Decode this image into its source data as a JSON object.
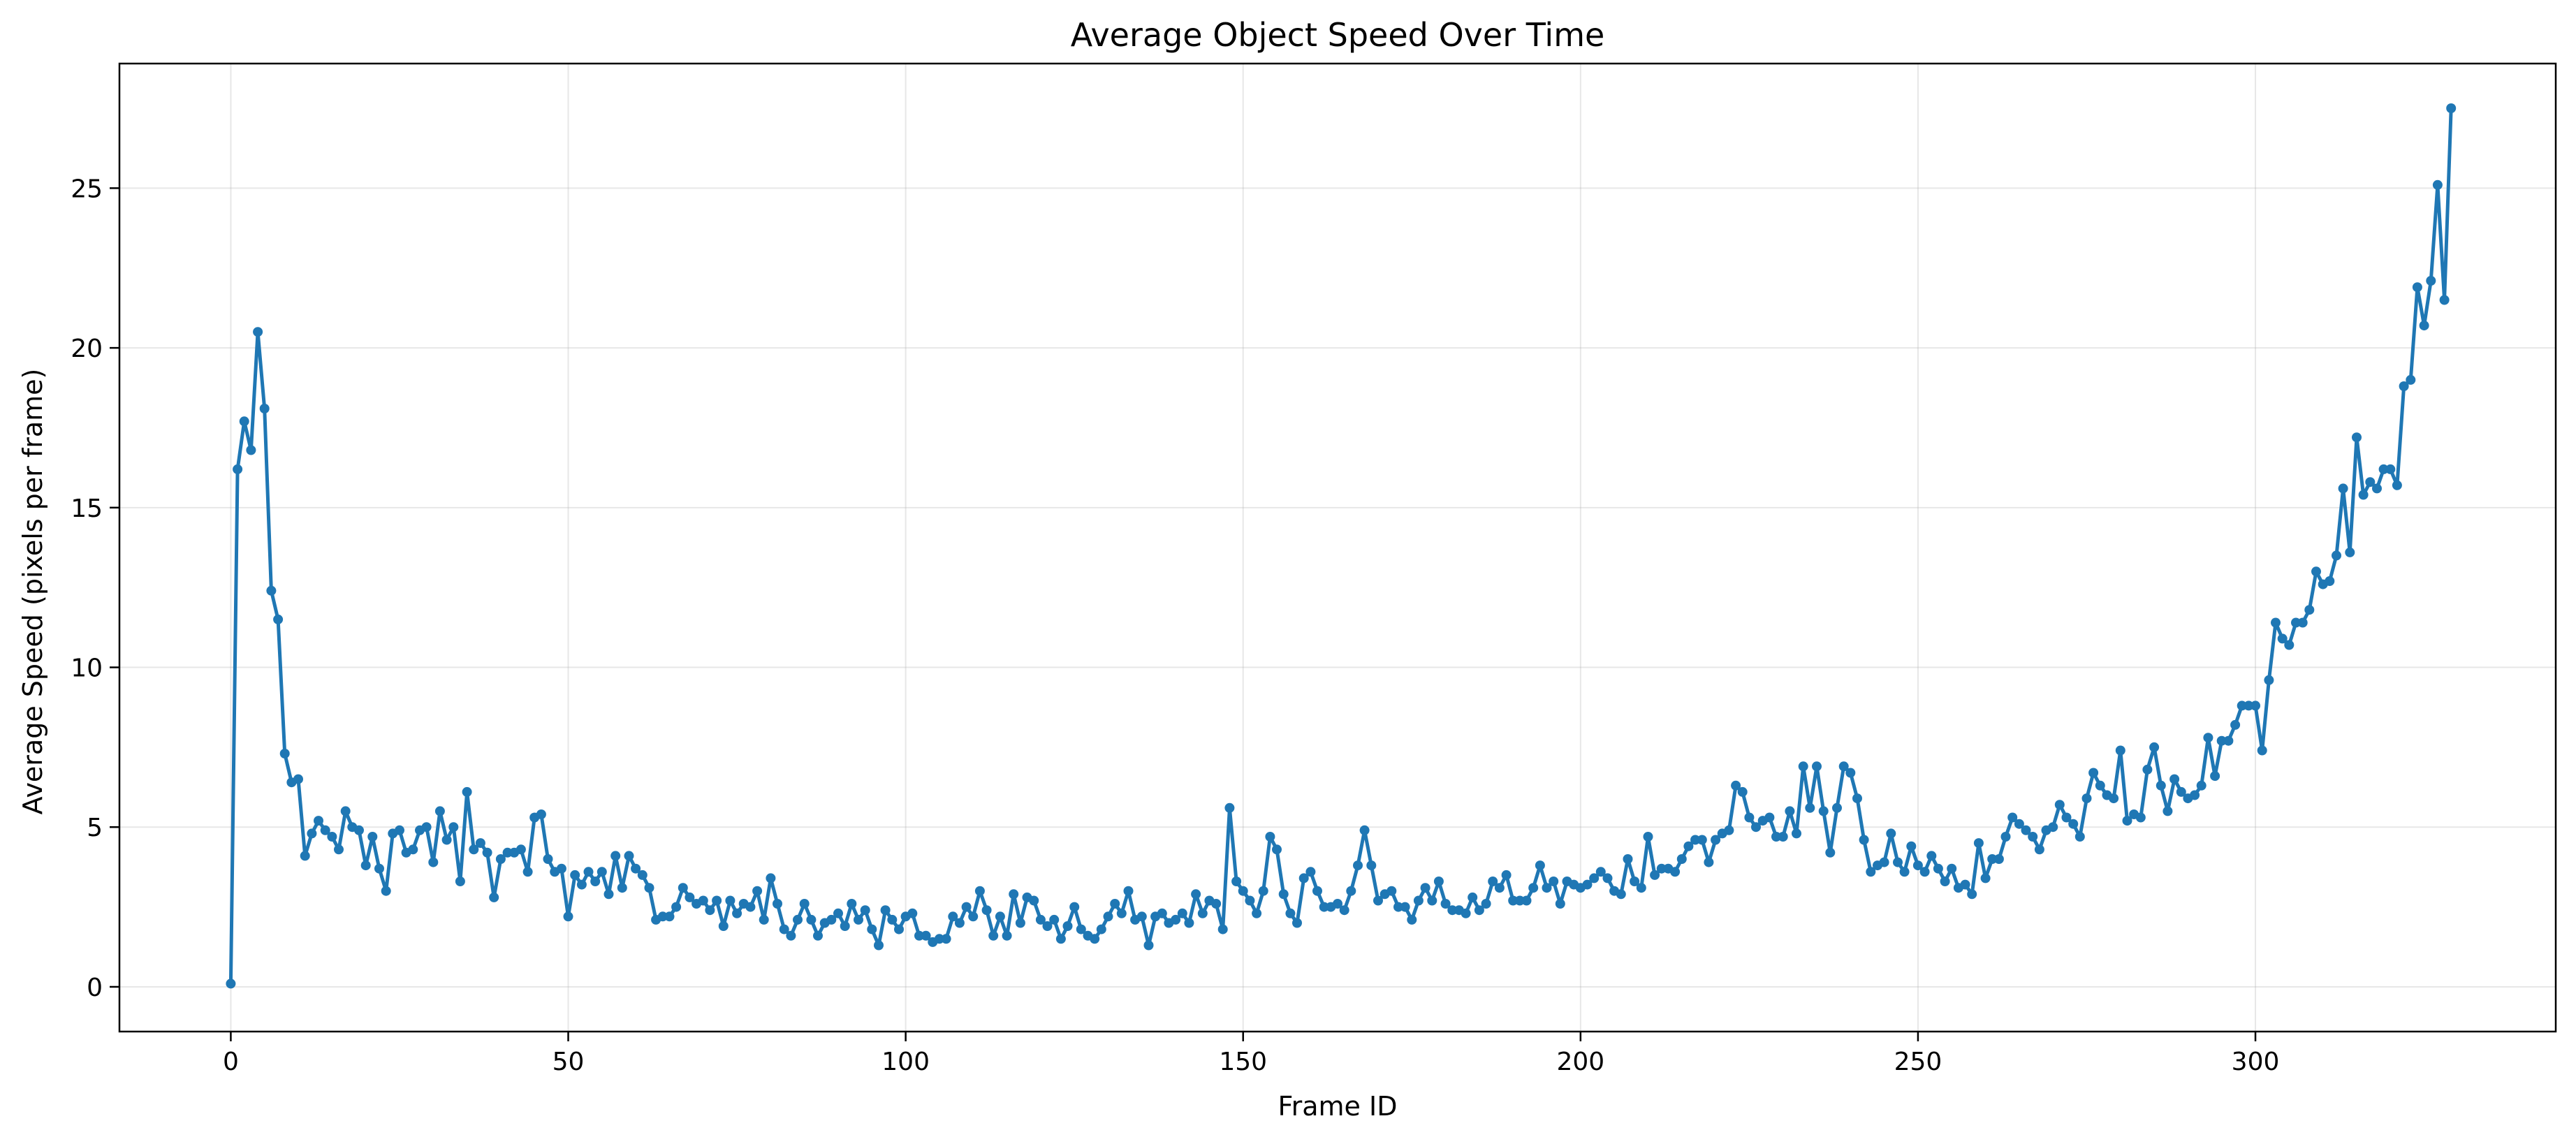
{
  "chart_data": {
    "type": "line",
    "title": "Average Object Speed Over Time",
    "xlabel": "Frame ID",
    "ylabel": "Average Speed (pixels per frame)",
    "xlim": [
      -16.5,
      344.5
    ],
    "ylim": [
      -1.4,
      28.9
    ],
    "xticks": [
      0,
      50,
      100,
      150,
      200,
      250,
      300
    ],
    "yticks": [
      0,
      5,
      10,
      15,
      20,
      25
    ],
    "grid": true,
    "markers": true,
    "color": "#1f77b4",
    "series": [
      {
        "values": [
          0.1,
          16.2,
          17.7,
          16.8,
          20.5,
          18.1,
          12.4,
          11.5,
          7.3,
          6.4,
          6.5,
          4.1,
          4.8,
          5.2,
          4.9,
          4.7,
          4.3,
          5.5,
          5.0,
          4.9,
          3.8,
          4.7,
          3.7,
          3.0,
          4.8,
          4.9,
          4.2,
          4.3,
          4.9,
          5.0,
          3.9,
          5.5,
          4.6,
          5.0,
          3.3,
          6.1,
          4.3,
          4.5,
          4.2,
          2.8,
          4.0,
          4.2,
          4.2,
          4.3,
          3.6,
          5.3,
          5.4,
          4.0,
          3.6,
          3.7,
          2.2,
          3.5,
          3.2,
          3.6,
          3.3,
          3.6,
          2.9,
          4.1,
          3.1,
          4.1,
          3.7,
          3.5,
          3.1,
          2.1,
          2.2,
          2.2,
          2.5,
          3.1,
          2.8,
          2.6,
          2.7,
          2.4,
          2.7,
          1.9,
          2.7,
          2.3,
          2.6,
          2.5,
          3.0,
          2.1,
          3.4,
          2.6,
          1.8,
          1.6,
          2.1,
          2.6,
          2.1,
          1.6,
          2.0,
          2.1,
          2.3,
          1.9,
          2.6,
          2.1,
          2.4,
          1.8,
          1.3,
          2.4,
          2.1,
          1.8,
          2.2,
          2.3,
          1.6,
          1.6,
          1.4,
          1.5,
          1.5,
          2.2,
          2.0,
          2.5,
          2.2,
          3.0,
          2.4,
          1.6,
          2.2,
          1.6,
          2.9,
          2.0,
          2.8,
          2.7,
          2.1,
          1.9,
          2.1,
          1.5,
          1.9,
          2.5,
          1.8,
          1.6,
          1.5,
          1.8,
          2.2,
          2.6,
          2.3,
          3.0,
          2.1,
          2.2,
          1.3,
          2.2,
          2.3,
          2.0,
          2.1,
          2.3,
          2.0,
          2.9,
          2.3,
          2.7,
          2.6,
          1.8,
          5.6,
          3.3,
          3.0,
          2.7,
          2.3,
          3.0,
          4.7,
          4.3,
          2.9,
          2.3,
          2.0,
          3.4,
          3.6,
          3.0,
          2.5,
          2.5,
          2.6,
          2.4,
          3.0,
          3.8,
          4.9,
          3.8,
          2.7,
          2.9,
          3.0,
          2.5,
          2.5,
          2.1,
          2.7,
          3.1,
          2.7,
          3.3,
          2.6,
          2.4,
          2.4,
          2.3,
          2.8,
          2.4,
          2.6,
          3.3,
          3.1,
          3.5,
          2.7,
          2.7,
          2.7,
          3.1,
          3.8,
          3.1,
          3.3,
          2.6,
          3.3,
          3.2,
          3.1,
          3.2,
          3.4,
          3.6,
          3.4,
          3.0,
          2.9,
          4.0,
          3.3,
          3.1,
          4.7,
          3.5,
          3.7,
          3.7,
          3.6,
          4.0,
          4.4,
          4.6,
          4.6,
          3.9,
          4.6,
          4.8,
          4.9,
          6.3,
          6.1,
          5.3,
          5.0,
          5.2,
          5.3,
          4.7,
          4.7,
          5.5,
          4.8,
          6.9,
          5.6,
          6.9,
          5.5,
          4.2,
          5.6,
          6.9,
          6.7,
          5.9,
          4.6,
          3.6,
          3.8,
          3.9,
          4.8,
          3.9,
          3.6,
          4.4,
          3.8,
          3.6,
          4.1,
          3.7,
          3.3,
          3.7,
          3.1,
          3.2,
          2.9,
          4.5,
          3.4,
          4.0,
          4.0,
          4.7,
          5.3,
          5.1,
          4.9,
          4.7,
          4.3,
          4.9,
          5.0,
          5.7,
          5.3,
          5.1,
          4.7,
          5.9,
          6.7,
          6.3,
          6.0,
          5.9,
          7.4,
          5.2,
          5.4,
          5.3,
          6.8,
          7.5,
          6.3,
          5.5,
          6.5,
          6.1,
          5.9,
          6.0,
          6.3,
          7.8,
          6.6,
          7.7,
          7.7,
          8.2,
          8.8,
          8.8,
          8.8,
          7.4,
          9.6,
          11.4,
          10.9,
          10.7,
          11.4,
          11.4,
          11.8,
          13.0,
          12.6,
          12.7,
          13.5,
          15.6,
          13.6,
          17.2,
          15.4,
          15.8,
          15.6,
          16.2,
          16.2,
          15.7,
          18.8,
          19.0,
          21.9,
          20.7,
          22.1,
          25.1,
          21.5,
          27.5
        ]
      }
    ]
  }
}
